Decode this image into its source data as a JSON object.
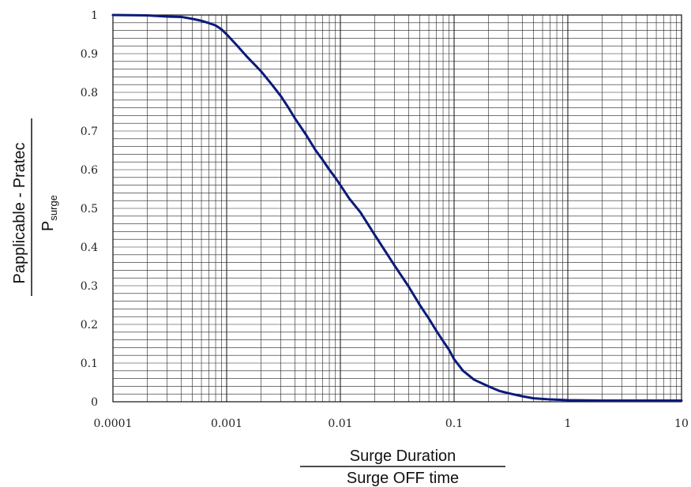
{
  "chart_data": {
    "type": "line",
    "x_scale": "log",
    "xlim": [
      0.0001,
      10
    ],
    "ylim": [
      0,
      1
    ],
    "grid": true,
    "x_ticks": [
      "0.0001",
      "0.001",
      "0.01",
      "0.1",
      "1",
      "10"
    ],
    "y_ticks": [
      "0",
      "0.1",
      "0.2",
      "0.3",
      "0.4",
      "0.5",
      "0.6",
      "0.7",
      "0.8",
      "0.9",
      "1"
    ],
    "xlabel_numerator": "Surge Duration",
    "xlabel_denominator": "Surge OFF time",
    "ylabel_numerator": "Papplicable - Pratec",
    "ylabel_denominator_main": "P",
    "ylabel_denominator_sub": "surge",
    "line_color": "#0b1a7a",
    "series": [
      {
        "x": [
          0.0001,
          0.0002,
          0.0003,
          0.0004,
          0.0005,
          0.0006,
          0.0007,
          0.0008,
          0.0009,
          0.001,
          0.0012,
          0.0015,
          0.002,
          0.0025,
          0.003,
          0.0035,
          0.004,
          0.005,
          0.006,
          0.007,
          0.008,
          0.009,
          0.01,
          0.012,
          0.015,
          0.02,
          0.025,
          0.03,
          0.04,
          0.05,
          0.06,
          0.07,
          0.08,
          0.09,
          0.1,
          0.12,
          0.15,
          0.2,
          0.25,
          0.3,
          0.4,
          0.5,
          0.7,
          1,
          2,
          5,
          10
        ],
        "y": [
          1.0,
          0.999,
          0.996,
          0.995,
          0.99,
          0.985,
          0.979,
          0.973,
          0.963,
          0.95,
          0.925,
          0.893,
          0.855,
          0.82,
          0.79,
          0.76,
          0.732,
          0.69,
          0.652,
          0.625,
          0.6,
          0.58,
          0.56,
          0.525,
          0.49,
          0.432,
          0.388,
          0.352,
          0.297,
          0.25,
          0.215,
          0.183,
          0.157,
          0.135,
          0.11,
          0.08,
          0.057,
          0.04,
          0.028,
          0.022,
          0.014,
          0.009,
          0.006,
          0.004,
          0.003,
          0.003,
          0.003
        ]
      }
    ]
  }
}
